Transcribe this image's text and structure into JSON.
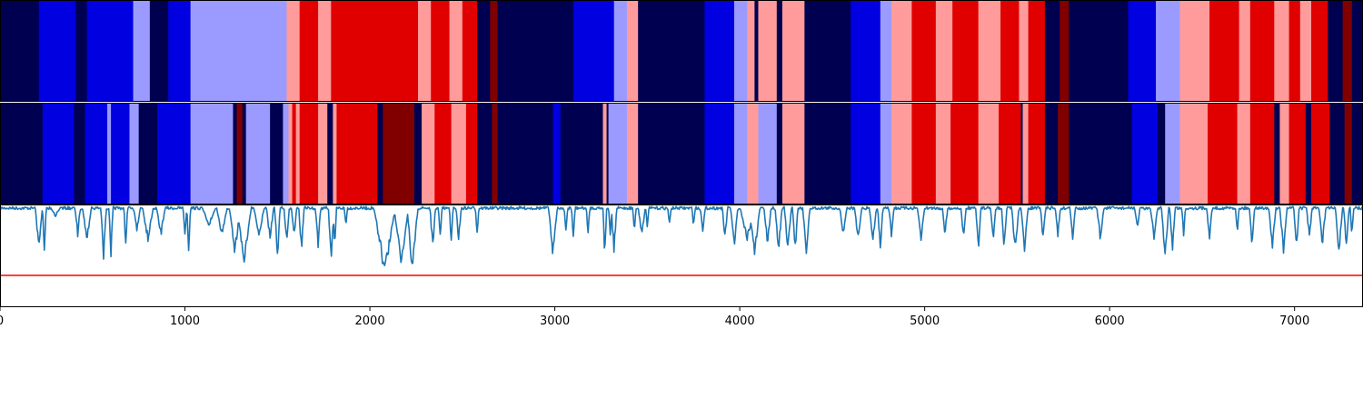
{
  "chart_data": [
    {
      "type": "heatmap",
      "id": "segment-track-1",
      "colormap": "seismic",
      "palette": {
        "0": "#000050",
        "1": "#0000e0",
        "2": "#9b9bff",
        "3": "#ff9b9b",
        "4": "#e00000",
        "5": "#800000"
      },
      "xlim": [
        0,
        7370
      ],
      "segments": [
        [
          0,
          210,
          0
        ],
        [
          210,
          410,
          1
        ],
        [
          410,
          470,
          0
        ],
        [
          470,
          720,
          1
        ],
        [
          720,
          810,
          2
        ],
        [
          810,
          910,
          0
        ],
        [
          910,
          1030,
          1
        ],
        [
          1030,
          1550,
          2
        ],
        [
          1550,
          1620,
          3
        ],
        [
          1620,
          1720,
          4
        ],
        [
          1720,
          1790,
          3
        ],
        [
          1790,
          2260,
          4
        ],
        [
          2260,
          2330,
          3
        ],
        [
          2330,
          2430,
          4
        ],
        [
          2430,
          2500,
          3
        ],
        [
          2500,
          2580,
          4
        ],
        [
          2580,
          2650,
          0
        ],
        [
          2650,
          2690,
          5
        ],
        [
          2690,
          3100,
          0
        ],
        [
          3100,
          3320,
          1
        ],
        [
          3320,
          3390,
          2
        ],
        [
          3390,
          3450,
          3
        ],
        [
          3450,
          3810,
          0
        ],
        [
          3810,
          3970,
          1
        ],
        [
          3970,
          4040,
          2
        ],
        [
          4040,
          4080,
          3
        ],
        [
          4080,
          4100,
          0
        ],
        [
          4100,
          4200,
          3
        ],
        [
          4200,
          4230,
          0
        ],
        [
          4230,
          4350,
          3
        ],
        [
          4350,
          4600,
          0
        ],
        [
          4600,
          4760,
          1
        ],
        [
          4760,
          4820,
          2
        ],
        [
          4820,
          4930,
          3
        ],
        [
          4930,
          5060,
          4
        ],
        [
          5060,
          5150,
          3
        ],
        [
          5150,
          5290,
          4
        ],
        [
          5290,
          5410,
          3
        ],
        [
          5410,
          5510,
          4
        ],
        [
          5510,
          5560,
          3
        ],
        [
          5560,
          5650,
          4
        ],
        [
          5650,
          5730,
          0
        ],
        [
          5730,
          5780,
          5
        ],
        [
          5780,
          6100,
          0
        ],
        [
          6100,
          6250,
          1
        ],
        [
          6250,
          6380,
          2
        ],
        [
          6380,
          6540,
          3
        ],
        [
          6540,
          6700,
          4
        ],
        [
          6700,
          6760,
          3
        ],
        [
          6760,
          6890,
          4
        ],
        [
          6890,
          6970,
          3
        ],
        [
          6970,
          7030,
          4
        ],
        [
          7030,
          7090,
          3
        ],
        [
          7090,
          7180,
          4
        ],
        [
          7180,
          7260,
          0
        ],
        [
          7260,
          7310,
          5
        ],
        [
          7310,
          7370,
          0
        ]
      ]
    },
    {
      "type": "heatmap",
      "id": "segment-track-2",
      "colormap": "seismic",
      "xlim": [
        0,
        7370
      ],
      "segments": [
        [
          0,
          230,
          0
        ],
        [
          230,
          400,
          1
        ],
        [
          400,
          460,
          0
        ],
        [
          460,
          580,
          1
        ],
        [
          580,
          600,
          2
        ],
        [
          600,
          700,
          1
        ],
        [
          700,
          750,
          2
        ],
        [
          750,
          850,
          0
        ],
        [
          850,
          1030,
          1
        ],
        [
          1030,
          1260,
          2
        ],
        [
          1260,
          1280,
          0
        ],
        [
          1280,
          1310,
          5
        ],
        [
          1310,
          1330,
          0
        ],
        [
          1330,
          1460,
          2
        ],
        [
          1460,
          1530,
          0
        ],
        [
          1530,
          1560,
          2
        ],
        [
          1560,
          1580,
          3
        ],
        [
          1580,
          1600,
          4
        ],
        [
          1600,
          1620,
          3
        ],
        [
          1620,
          1650,
          4
        ],
        [
          1650,
          1720,
          4
        ],
        [
          1720,
          1770,
          3
        ],
        [
          1770,
          1800,
          0
        ],
        [
          1800,
          1820,
          3
        ],
        [
          1820,
          2040,
          4
        ],
        [
          2040,
          2070,
          0
        ],
        [
          2070,
          2240,
          5
        ],
        [
          2240,
          2280,
          0
        ],
        [
          2280,
          2350,
          3
        ],
        [
          2350,
          2440,
          4
        ],
        [
          2440,
          2520,
          3
        ],
        [
          2520,
          2580,
          4
        ],
        [
          2580,
          2660,
          0
        ],
        [
          2660,
          2690,
          5
        ],
        [
          2690,
          2990,
          0
        ],
        [
          2990,
          3030,
          1
        ],
        [
          3030,
          3260,
          0
        ],
        [
          3260,
          3280,
          3
        ],
        [
          3280,
          3290,
          0
        ],
        [
          3290,
          3330,
          2
        ],
        [
          3330,
          3390,
          2
        ],
        [
          3390,
          3450,
          3
        ],
        [
          3450,
          3810,
          0
        ],
        [
          3810,
          3970,
          1
        ],
        [
          3970,
          4040,
          2
        ],
        [
          4040,
          4100,
          3
        ],
        [
          4100,
          4200,
          2
        ],
        [
          4200,
          4230,
          0
        ],
        [
          4230,
          4350,
          3
        ],
        [
          4350,
          4600,
          0
        ],
        [
          4600,
          4760,
          1
        ],
        [
          4760,
          4820,
          2
        ],
        [
          4820,
          4930,
          3
        ],
        [
          4930,
          5060,
          4
        ],
        [
          5060,
          5140,
          3
        ],
        [
          5140,
          5290,
          4
        ],
        [
          5290,
          5400,
          3
        ],
        [
          5400,
          5520,
          4
        ],
        [
          5520,
          5530,
          0
        ],
        [
          5530,
          5560,
          3
        ],
        [
          5560,
          5650,
          4
        ],
        [
          5650,
          5720,
          0
        ],
        [
          5720,
          5780,
          5
        ],
        [
          5780,
          6120,
          0
        ],
        [
          6120,
          6260,
          1
        ],
        [
          6260,
          6300,
          0
        ],
        [
          6300,
          6340,
          2
        ],
        [
          6340,
          6380,
          2
        ],
        [
          6380,
          6530,
          3
        ],
        [
          6530,
          6690,
          4
        ],
        [
          6690,
          6760,
          3
        ],
        [
          6760,
          6890,
          4
        ],
        [
          6890,
          6920,
          0
        ],
        [
          6920,
          6970,
          3
        ],
        [
          6970,
          7060,
          4
        ],
        [
          7060,
          7090,
          0
        ],
        [
          7090,
          7190,
          4
        ],
        [
          7190,
          7270,
          0
        ],
        [
          7270,
          7310,
          5
        ],
        [
          7310,
          7370,
          0
        ]
      ]
    },
    {
      "type": "line",
      "id": "signal-trace",
      "xlim": [
        0,
        7370
      ],
      "ylim": [
        0,
        1
      ],
      "xticks": [
        0,
        1000,
        2000,
        3000,
        4000,
        5000,
        6000,
        7000
      ],
      "xticklabels": [
        "0",
        "1000",
        "2000",
        "3000",
        "4000",
        "5000",
        "6000",
        "7000"
      ],
      "threshold": {
        "value": 0.31,
        "color": "#ff0000"
      },
      "line_color": "#1f77b4",
      "baseline": 0.98,
      "dips": [
        [
          210,
          20,
          0.45
        ],
        [
          240,
          10,
          0.5
        ],
        [
          300,
          30,
          0.1
        ],
        [
          420,
          15,
          0.3
        ],
        [
          470,
          25,
          0.35
        ],
        [
          560,
          15,
          0.55
        ],
        [
          600,
          12,
          0.5
        ],
        [
          680,
          10,
          0.45
        ],
        [
          740,
          20,
          0.25
        ],
        [
          800,
          30,
          0.35
        ],
        [
          870,
          25,
          0.3
        ],
        [
          1000,
          10,
          0.35
        ],
        [
          1020,
          10,
          0.5
        ],
        [
          1130,
          40,
          0.2
        ],
        [
          1200,
          30,
          0.3
        ],
        [
          1270,
          30,
          0.5
        ],
        [
          1320,
          40,
          0.6
        ],
        [
          1400,
          30,
          0.3
        ],
        [
          1460,
          20,
          0.35
        ],
        [
          1500,
          15,
          0.55
        ],
        [
          1550,
          15,
          0.4
        ],
        [
          1590,
          15,
          0.35
        ],
        [
          1630,
          15,
          0.45
        ],
        [
          1720,
          15,
          0.4
        ],
        [
          1790,
          15,
          0.6
        ],
        [
          1810,
          10,
          0.5
        ],
        [
          1870,
          10,
          0.2
        ],
        [
          2080,
          60,
          0.7
        ],
        [
          2170,
          40,
          0.6
        ],
        [
          2230,
          30,
          0.7
        ],
        [
          2340,
          15,
          0.45
        ],
        [
          2380,
          10,
          0.35
        ],
        [
          2440,
          10,
          0.4
        ],
        [
          2480,
          15,
          0.35
        ],
        [
          2580,
          10,
          0.3
        ],
        [
          2990,
          25,
          0.5
        ],
        [
          3060,
          10,
          0.3
        ],
        [
          3100,
          10,
          0.35
        ],
        [
          3180,
          10,
          0.3
        ],
        [
          3270,
          10,
          0.55
        ],
        [
          3300,
          10,
          0.3
        ],
        [
          3320,
          15,
          0.5
        ],
        [
          3430,
          10,
          0.25
        ],
        [
          3470,
          20,
          0.3
        ],
        [
          3500,
          10,
          0.2
        ],
        [
          3620,
          10,
          0.2
        ],
        [
          3750,
          10,
          0.2
        ],
        [
          3800,
          15,
          0.25
        ],
        [
          3920,
          15,
          0.35
        ],
        [
          3970,
          20,
          0.45
        ],
        [
          4040,
          40,
          0.35
        ],
        [
          4080,
          30,
          0.5
        ],
        [
          4150,
          20,
          0.4
        ],
        [
          4210,
          20,
          0.45
        ],
        [
          4260,
          20,
          0.45
        ],
        [
          4300,
          15,
          0.45
        ],
        [
          4360,
          20,
          0.5
        ],
        [
          4560,
          20,
          0.3
        ],
        [
          4640,
          20,
          0.35
        ],
        [
          4720,
          20,
          0.35
        ],
        [
          4760,
          15,
          0.45
        ],
        [
          4820,
          15,
          0.3
        ],
        [
          4980,
          20,
          0.35
        ],
        [
          5110,
          15,
          0.3
        ],
        [
          5210,
          15,
          0.35
        ],
        [
          5290,
          15,
          0.45
        ],
        [
          5370,
          15,
          0.35
        ],
        [
          5430,
          15,
          0.45
        ],
        [
          5490,
          20,
          0.5
        ],
        [
          5540,
          20,
          0.45
        ],
        [
          5640,
          15,
          0.35
        ],
        [
          5720,
          15,
          0.3
        ],
        [
          5800,
          15,
          0.35
        ],
        [
          5950,
          20,
          0.35
        ],
        [
          6150,
          15,
          0.25
        ],
        [
          6240,
          20,
          0.35
        ],
        [
          6300,
          20,
          0.55
        ],
        [
          6340,
          15,
          0.45
        ],
        [
          6400,
          10,
          0.3
        ],
        [
          6540,
          15,
          0.35
        ],
        [
          6690,
          10,
          0.3
        ],
        [
          6770,
          15,
          0.4
        ],
        [
          6880,
          20,
          0.45
        ],
        [
          6940,
          20,
          0.5
        ],
        [
          7010,
          15,
          0.45
        ],
        [
          7080,
          15,
          0.35
        ],
        [
          7150,
          20,
          0.4
        ],
        [
          7240,
          20,
          0.5
        ],
        [
          7280,
          15,
          0.45
        ],
        [
          7310,
          10,
          0.3
        ]
      ]
    }
  ]
}
